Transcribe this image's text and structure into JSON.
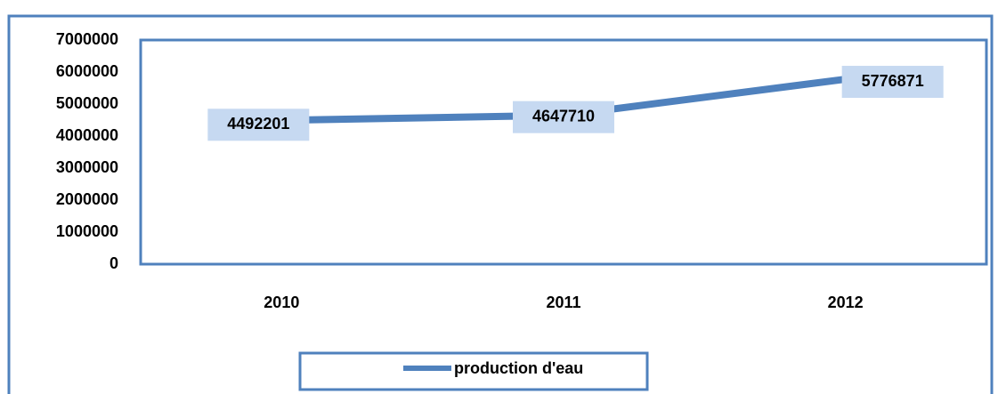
{
  "chart_data": {
    "type": "line",
    "categories": [
      "2010",
      "2011",
      "2012"
    ],
    "series": [
      {
        "name": "production d'eau",
        "color": "#4f81bd",
        "values": [
          4492201,
          4647710,
          5776871
        ]
      }
    ],
    "ylim": [
      0,
      7000000
    ],
    "yticks": [
      0,
      1000000,
      2000000,
      3000000,
      4000000,
      5000000,
      6000000,
      7000000
    ],
    "legend": "bottom"
  }
}
